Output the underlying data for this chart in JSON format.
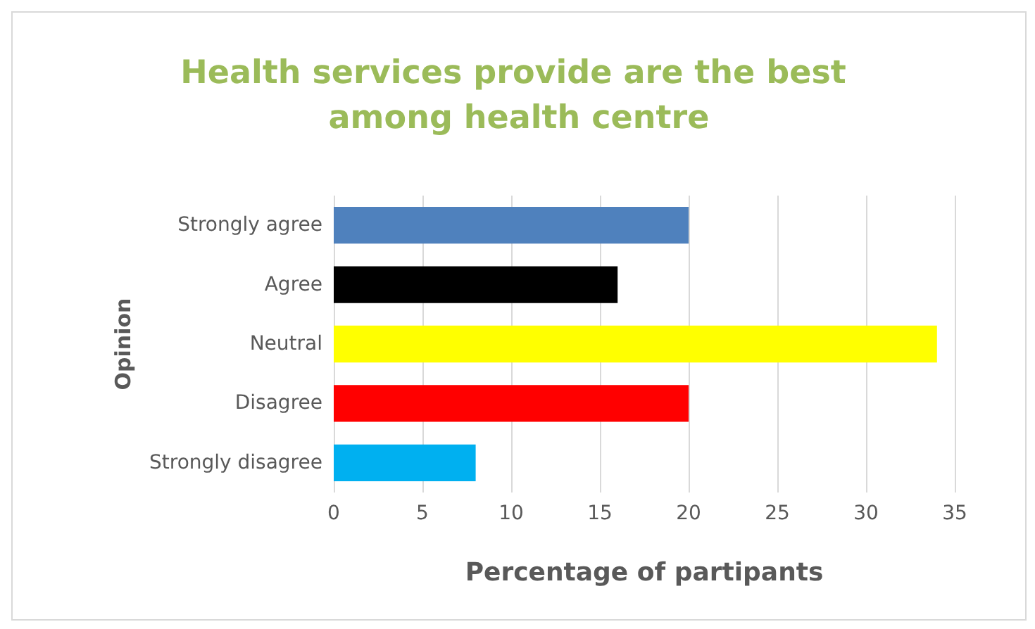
{
  "chart_data": {
    "type": "bar",
    "orientation": "horizontal",
    "title": "Health services provide are the best among health centre",
    "xlabel": "Percentage of partipants",
    "ylabel": "Opinion",
    "categories": [
      "Strongly agree",
      "Agree",
      "Neutral",
      "Disagree",
      "Strongly disagree"
    ],
    "values": [
      20,
      16,
      34,
      20,
      8
    ],
    "colors": [
      "#4f81bd",
      "#000000",
      "#ffff00",
      "#ff0000",
      "#00b0f0"
    ],
    "xlim": [
      0,
      35
    ],
    "xticks": [
      0,
      5,
      10,
      15,
      20,
      25,
      30,
      35
    ],
    "grid": "x"
  }
}
